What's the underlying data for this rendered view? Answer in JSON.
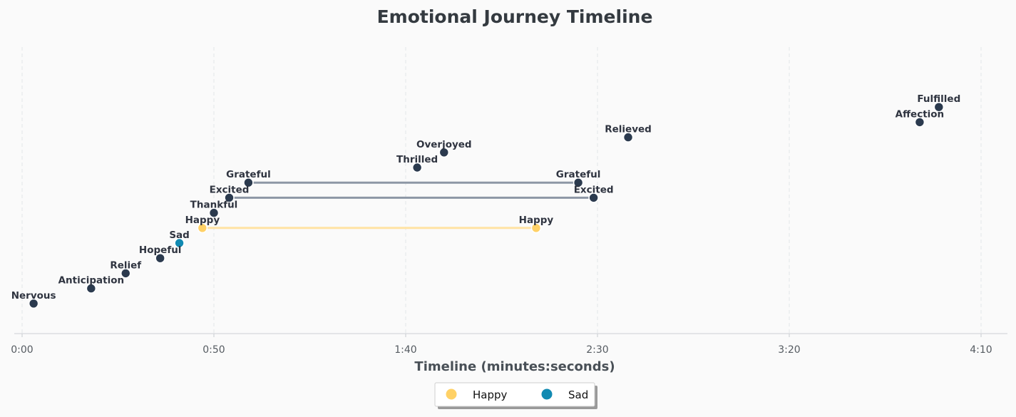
{
  "chart_data": {
    "type": "scatter",
    "title": "Emotional Journey Timeline",
    "xlabel": "Timeline (minutes:seconds)",
    "ylabel": "",
    "xlim": [
      0,
      255
    ],
    "x_ticks": [
      {
        "value": 0,
        "label": "0:00"
      },
      {
        "value": 50,
        "label": "0:50"
      },
      {
        "value": 100,
        "label": "1:40"
      },
      {
        "value": 150,
        "label": "2:30"
      },
      {
        "value": 200,
        "label": "3:20"
      },
      {
        "value": 250,
        "label": "4:10"
      }
    ],
    "grid": "vertical dashed",
    "colors": {
      "Happy": "#ffd166",
      "Sad": "#118ab2",
      "default": "#2b3a4e",
      "pair_line_default": "#8d97a5",
      "pair_line_happy": "#ffe3a3"
    },
    "points": [
      {
        "label": "Nervous",
        "time": 3,
        "level": 1,
        "category": "other"
      },
      {
        "label": "Anticipation",
        "time": 18,
        "level": 2,
        "category": "other"
      },
      {
        "label": "Relief",
        "time": 27,
        "level": 3,
        "category": "other"
      },
      {
        "label": "Hopeful",
        "time": 36,
        "level": 4,
        "category": "other"
      },
      {
        "label": "Sad",
        "time": 41,
        "level": 5,
        "category": "Sad"
      },
      {
        "label": "Happy",
        "time": 47,
        "level": 6,
        "category": "Happy"
      },
      {
        "label": "Thankful",
        "time": 50,
        "level": 7,
        "category": "other"
      },
      {
        "label": "Excited",
        "time": 54,
        "level": 8,
        "category": "other"
      },
      {
        "label": "Grateful",
        "time": 59,
        "level": 9,
        "category": "other"
      },
      {
        "label": "Thrilled",
        "time": 103,
        "level": 10,
        "category": "other"
      },
      {
        "label": "Overjoyed",
        "time": 110,
        "level": 11,
        "category": "other"
      },
      {
        "label": "Happy",
        "time": 134,
        "level": 6,
        "category": "Happy"
      },
      {
        "label": "Grateful",
        "time": 145,
        "level": 9,
        "category": "other"
      },
      {
        "label": "Excited",
        "time": 149,
        "level": 8,
        "category": "other"
      },
      {
        "label": "Relieved",
        "time": 158,
        "level": 12,
        "category": "other"
      },
      {
        "label": "Affection",
        "time": 234,
        "level": 13,
        "category": "other"
      },
      {
        "label": "Fulfilled",
        "time": 239,
        "level": 14,
        "category": "other"
      }
    ],
    "pairs": [
      {
        "from_time": 47,
        "to_time": 134,
        "level": 6,
        "category": "Happy"
      },
      {
        "from_time": 54,
        "to_time": 149,
        "level": 8,
        "category": "other"
      },
      {
        "from_time": 59,
        "to_time": 145,
        "level": 9,
        "category": "other"
      }
    ],
    "legend": {
      "placement": "bottom-center",
      "entries": [
        {
          "label": "Happy",
          "color": "#ffd166"
        },
        {
          "label": "Sad",
          "color": "#118ab2"
        }
      ]
    }
  }
}
